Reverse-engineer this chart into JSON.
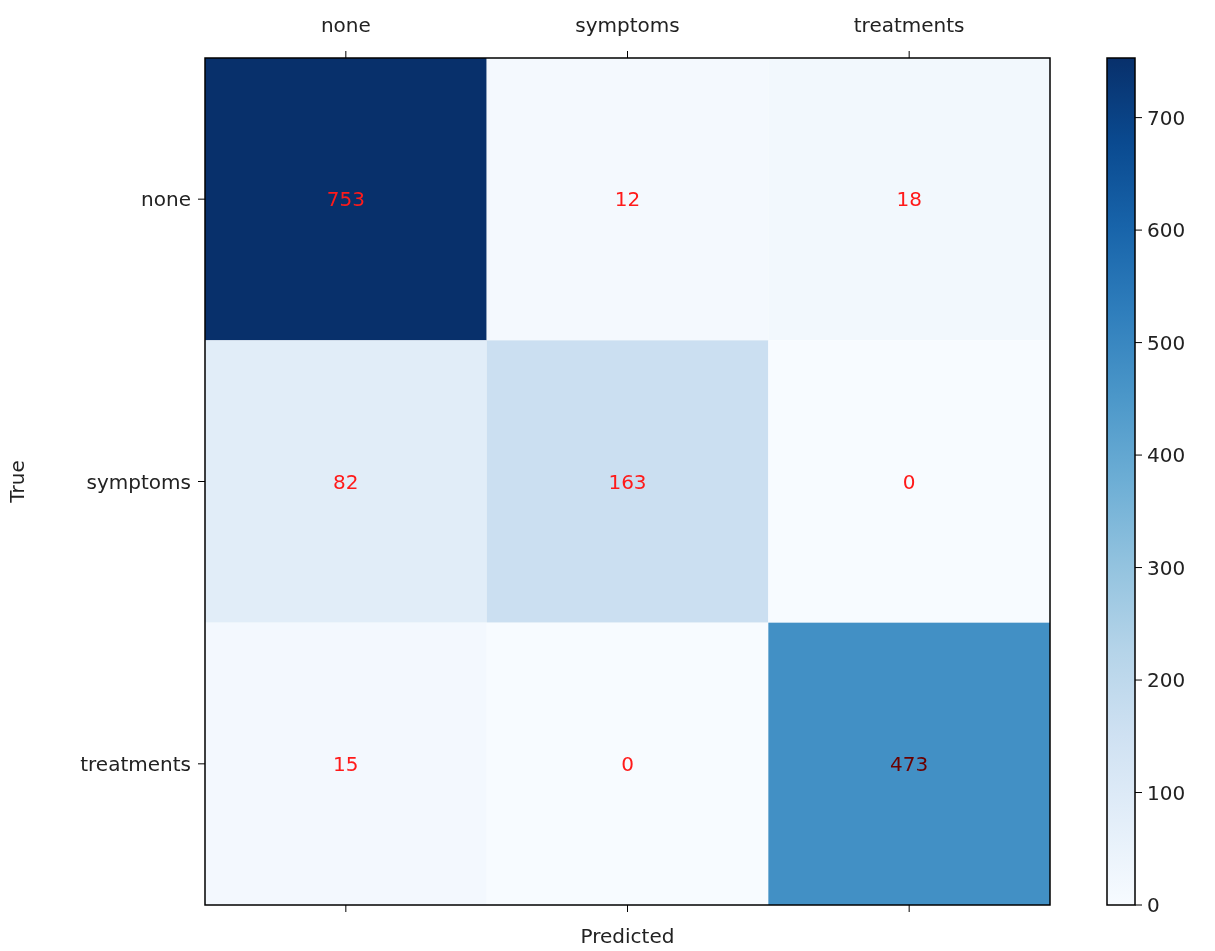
{
  "chart_data": {
    "type": "heatmap",
    "xlabel": "Predicted",
    "ylabel": "True",
    "categories": [
      "none",
      "symptoms",
      "treatments"
    ],
    "y_categories": [
      "none",
      "symptoms",
      "treatments"
    ],
    "cells": [
      [
        753,
        12,
        18
      ],
      [
        82,
        163,
        0
      ],
      [
        15,
        0,
        473
      ]
    ],
    "data_labels": true,
    "clim": [
      0,
      753
    ],
    "cticks": [
      0,
      100,
      200,
      300,
      400,
      500,
      600,
      700
    ]
  }
}
